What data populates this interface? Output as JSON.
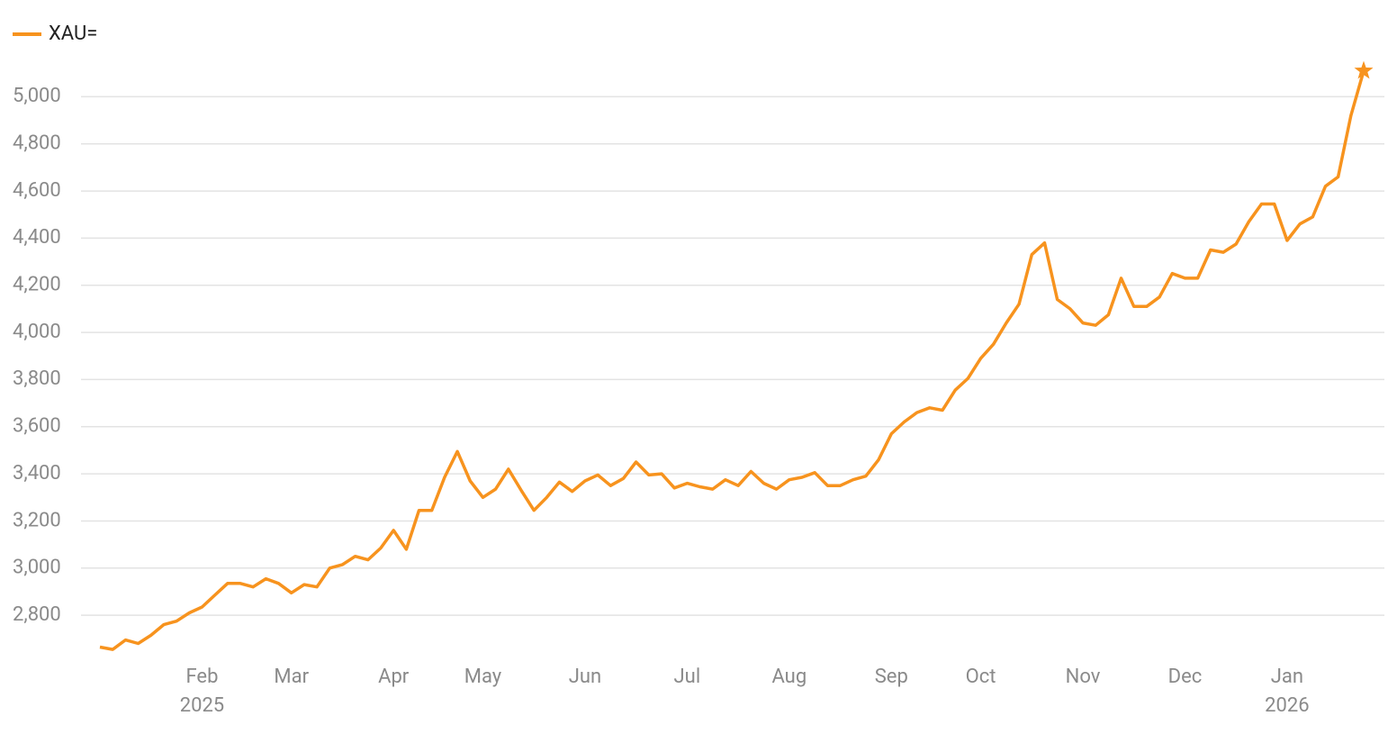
{
  "chart_data": {
    "type": "line",
    "categories": [
      null,
      null,
      null,
      null,
      null,
      null,
      null,
      null,
      "Feb",
      null,
      null,
      null,
      null,
      null,
      null,
      "Mar",
      null,
      null,
      null,
      null,
      null,
      null,
      null,
      "Apr",
      null,
      null,
      null,
      null,
      null,
      null,
      "May",
      null,
      null,
      null,
      null,
      null,
      null,
      null,
      "Jun",
      null,
      null,
      null,
      null,
      null,
      null,
      null,
      "Jul",
      null,
      null,
      null,
      null,
      null,
      null,
      null,
      "Aug",
      null,
      null,
      null,
      null,
      null,
      null,
      null,
      "Sep",
      null,
      null,
      null,
      null,
      null,
      null,
      "Oct",
      null,
      null,
      null,
      null,
      null,
      null,
      null,
      "Nov",
      null,
      null,
      null,
      null,
      null,
      null,
      null,
      "Dec",
      null,
      null,
      null,
      null,
      null,
      null,
      null,
      "Jan",
      null,
      null,
      null,
      null,
      null,
      null
    ],
    "years": [
      null,
      null,
      null,
      null,
      null,
      null,
      null,
      null,
      "2025",
      null,
      null,
      null,
      null,
      null,
      null,
      null,
      null,
      null,
      null,
      null,
      null,
      null,
      null,
      null,
      null,
      null,
      null,
      null,
      null,
      null,
      null,
      null,
      null,
      null,
      null,
      null,
      null,
      null,
      null,
      null,
      null,
      null,
      null,
      null,
      null,
      null,
      null,
      null,
      null,
      null,
      null,
      null,
      null,
      null,
      null,
      null,
      null,
      null,
      null,
      null,
      null,
      null,
      null,
      null,
      null,
      null,
      null,
      null,
      null,
      null,
      null,
      null,
      null,
      null,
      null,
      null,
      null,
      null,
      null,
      null,
      null,
      null,
      null,
      null,
      null,
      null,
      null,
      null,
      null,
      null,
      null,
      null,
      null,
      "2026",
      null,
      null,
      null,
      null,
      null,
      null
    ],
    "series": [
      {
        "name": "XAU=",
        "color": "#f7931e",
        "end_marker": "star",
        "values": [
          2665,
          2655,
          2695,
          2680,
          2715,
          2760,
          2775,
          2810,
          2835,
          2885,
          2935,
          2935,
          2920,
          2955,
          2935,
          2895,
          2930,
          2920,
          3000,
          3015,
          3050,
          3035,
          3085,
          3160,
          3080,
          3245,
          3245,
          3385,
          3495,
          3370,
          3300,
          3335,
          3420,
          3330,
          3245,
          3300,
          3365,
          3325,
          3370,
          3395,
          3350,
          3380,
          3450,
          3395,
          3400,
          3340,
          3360,
          3345,
          3335,
          3375,
          3350,
          3410,
          3360,
          3335,
          3375,
          3385,
          3405,
          3350,
          3350,
          3375,
          3390,
          3460,
          3570,
          3620,
          3660,
          3680,
          3670,
          3755,
          3805,
          3890,
          3950,
          4040,
          4120,
          4330,
          4380,
          4140,
          4100,
          4040,
          4030,
          4075,
          4230,
          4110,
          4110,
          4150,
          4250,
          4230,
          4230,
          4350,
          4340,
          4375,
          4470,
          4545,
          4545,
          4390,
          4460,
          4490,
          4620,
          4660,
          4920,
          5110
        ]
      }
    ],
    "ylim": [
      2640,
      5120
    ],
    "yticks": [
      {
        "value": 2800,
        "label": "2,800"
      },
      {
        "value": 3000,
        "label": "3,000"
      },
      {
        "value": 3200,
        "label": "3,200"
      },
      {
        "value": 3400,
        "label": "3,400"
      },
      {
        "value": 3600,
        "label": "3,600"
      },
      {
        "value": 3800,
        "label": "3,800"
      },
      {
        "value": 4000,
        "label": "4,000"
      },
      {
        "value": 4200,
        "label": "4,200"
      },
      {
        "value": 4400,
        "label": "4,400"
      },
      {
        "value": 4600,
        "label": "4,600"
      },
      {
        "value": 4800,
        "label": "4,800"
      },
      {
        "value": 5000,
        "label": "5,000"
      }
    ],
    "grid": true,
    "legend": "top-left"
  }
}
